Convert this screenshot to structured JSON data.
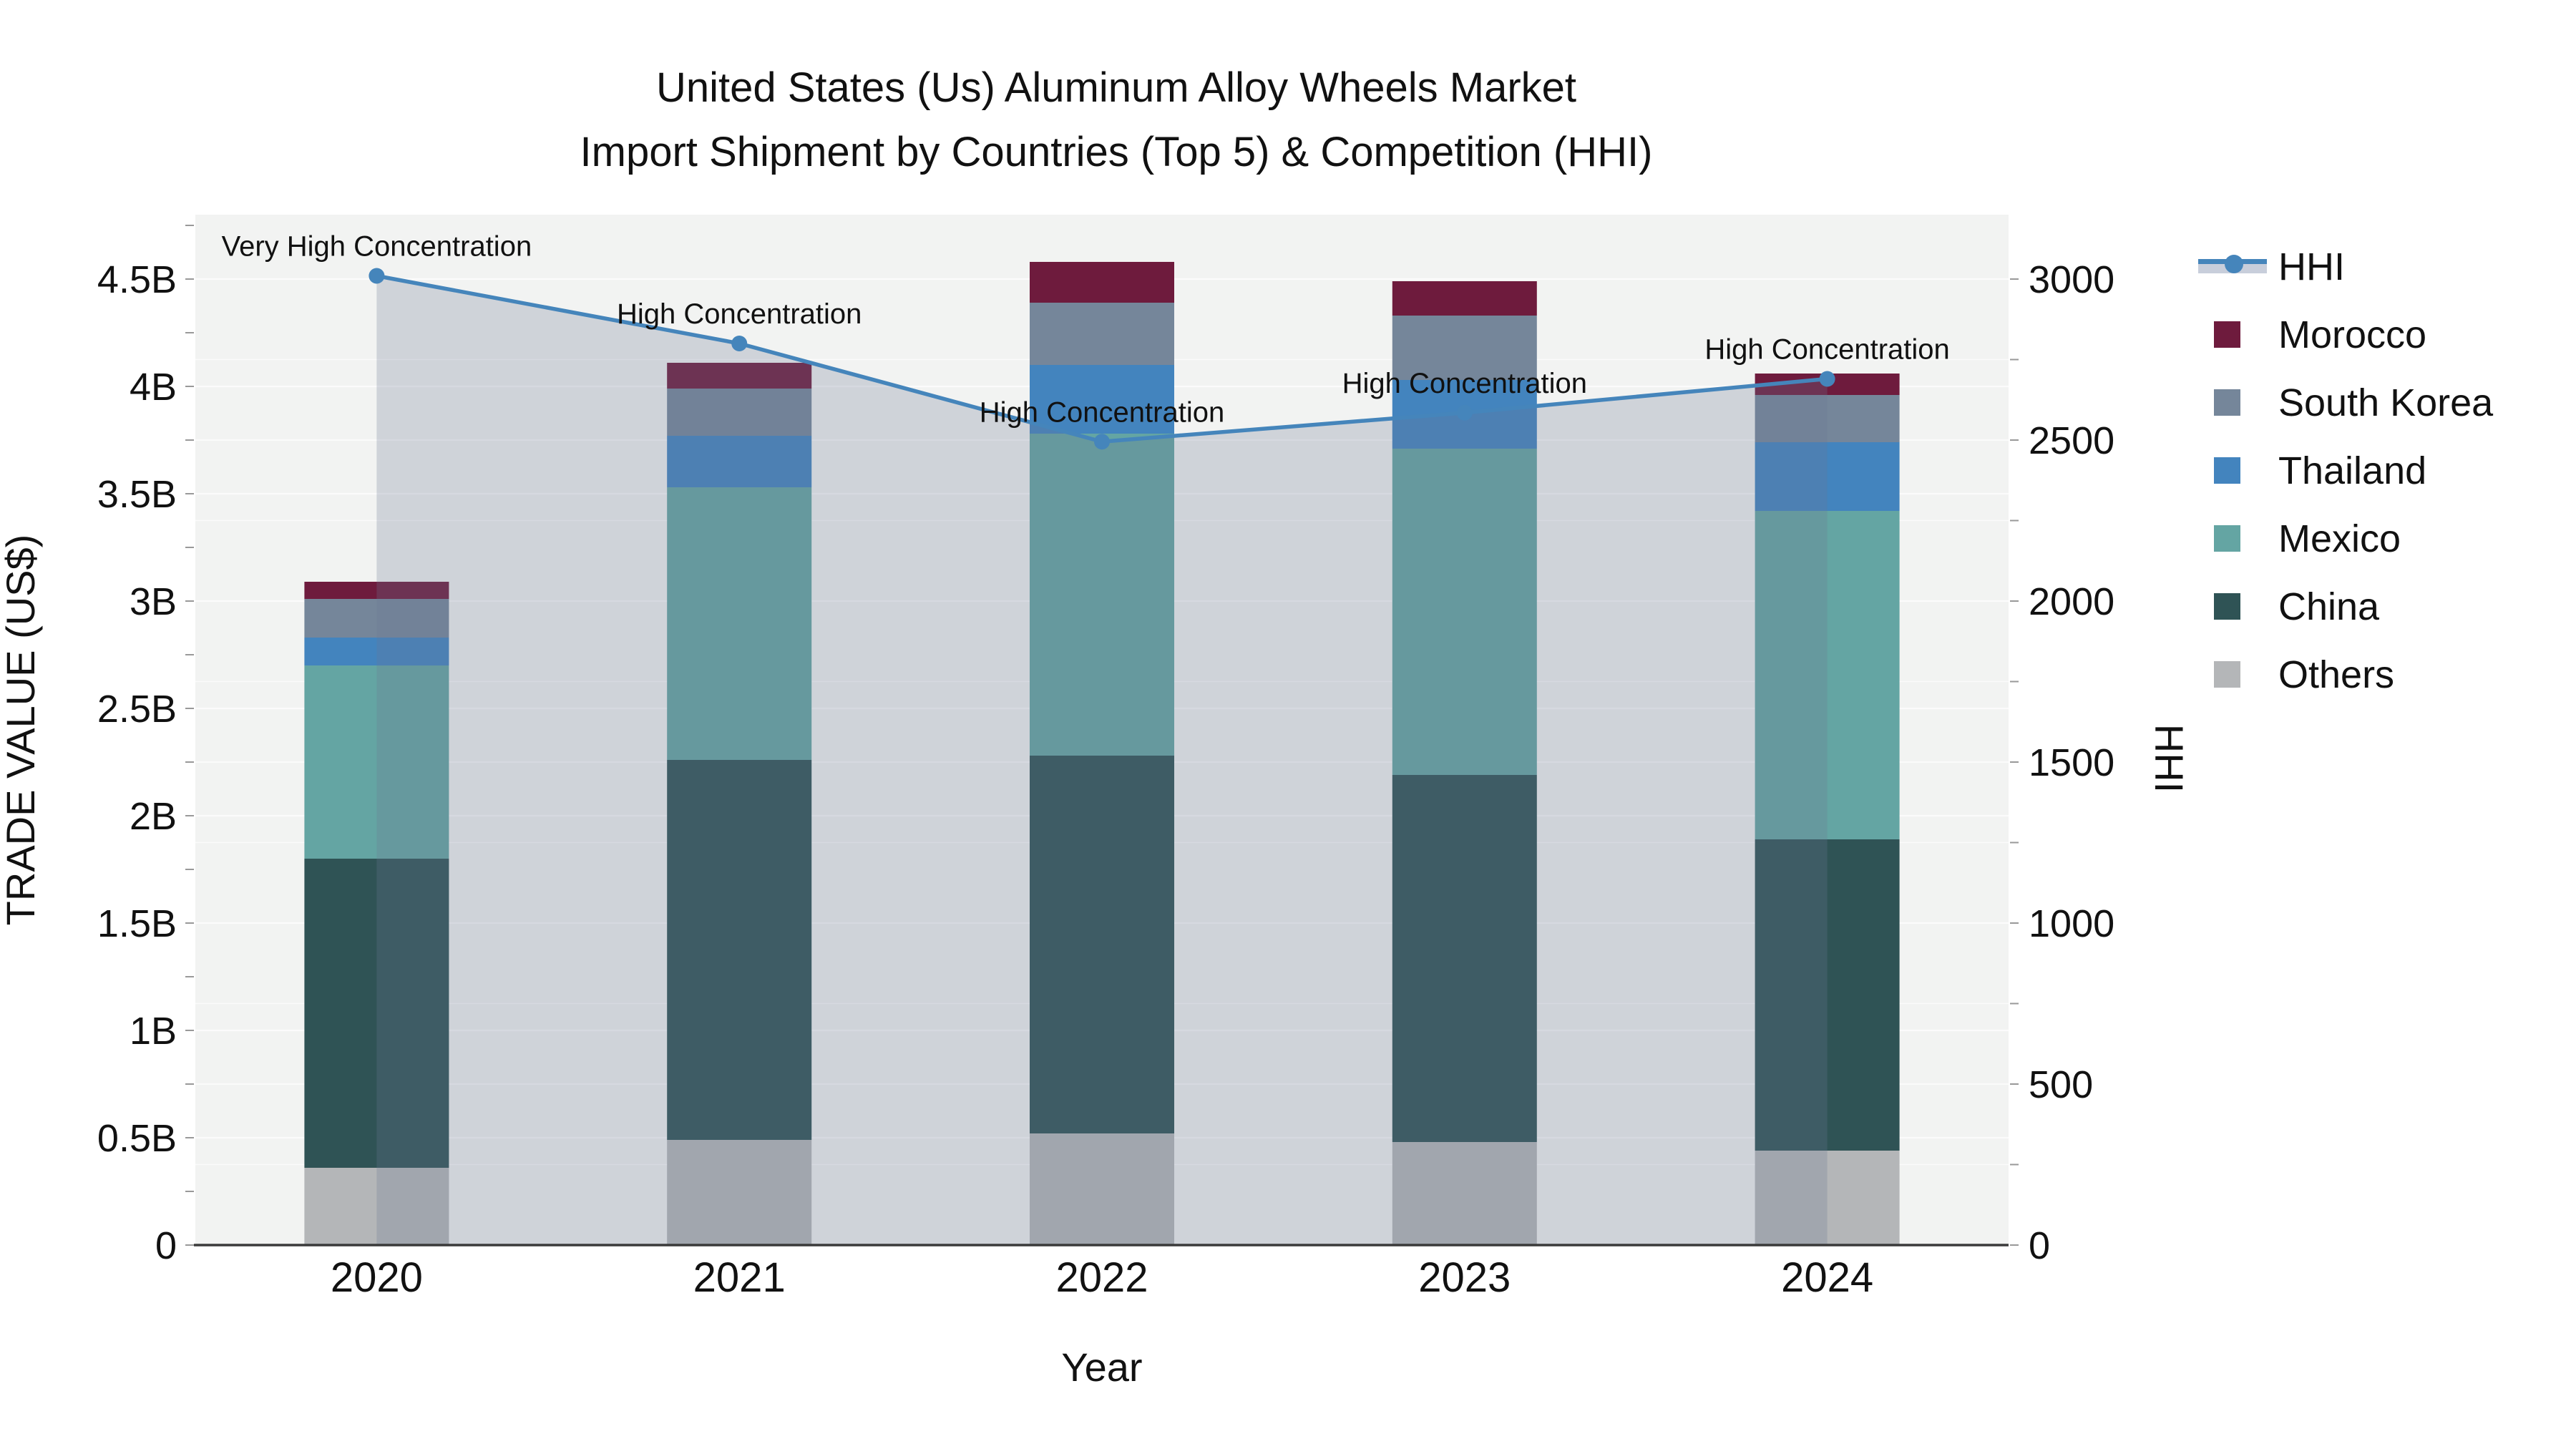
{
  "title": {
    "line1": "United States (Us) Aluminum Alloy Wheels Market",
    "line2": "Import Shipment by Countries (Top 5) & Competition (HHI)"
  },
  "axes": {
    "left": {
      "title": "TRADE VALUE (US$)",
      "ticks": [
        {
          "v": 0,
          "label": "0"
        },
        {
          "v": 0.5,
          "label": "0.5B"
        },
        {
          "v": 1,
          "label": "1B"
        },
        {
          "v": 1.5,
          "label": "1.5B"
        },
        {
          "v": 2,
          "label": "2B"
        },
        {
          "v": 2.5,
          "label": "2.5B"
        },
        {
          "v": 3,
          "label": "3B"
        },
        {
          "v": 3.5,
          "label": "3.5B"
        },
        {
          "v": 4,
          "label": "4B"
        },
        {
          "v": 4.5,
          "label": "4.5B"
        }
      ]
    },
    "right": {
      "title": "HHI",
      "ticks": [
        {
          "v": 0,
          "label": "0"
        },
        {
          "v": 500,
          "label": "500"
        },
        {
          "v": 1000,
          "label": "1000"
        },
        {
          "v": 1500,
          "label": "1500"
        },
        {
          "v": 2000,
          "label": "2000"
        },
        {
          "v": 2500,
          "label": "2500"
        },
        {
          "v": 3000,
          "label": "3000"
        }
      ]
    },
    "x": {
      "title": "Year"
    }
  },
  "colors": {
    "plot_bg": "#f2f3f2",
    "grid": "#fbfbfb",
    "axis_line": "#3a3a3a",
    "text": "#111111",
    "hhi_line": "#4585bb",
    "hhi_area": "rgba(108,120,148,0.26)",
    "legend_band": "#c8cedb"
  },
  "legend": {
    "items": [
      {
        "label": "HHI",
        "type": "line",
        "color": "#4585bb"
      },
      {
        "label": "Morocco",
        "type": "swatch",
        "color": "#6e1b3d"
      },
      {
        "label": "South Korea",
        "type": "swatch",
        "color": "#75869a"
      },
      {
        "label": "Thailand",
        "type": "swatch",
        "color": "#4384be"
      },
      {
        "label": "Mexico",
        "type": "swatch",
        "color": "#64a5a3"
      },
      {
        "label": "China",
        "type": "swatch",
        "color": "#2f5355"
      },
      {
        "label": "Others",
        "type": "swatch",
        "color": "#b4b6b8"
      }
    ]
  },
  "chart_data": {
    "type": "bar",
    "subtype": "stacked-bar-with-line-overlay",
    "categories": [
      "2020",
      "2021",
      "2022",
      "2023",
      "2024"
    ],
    "value_unit": "billion US$",
    "series": [
      {
        "name": "Others",
        "color": "#b4b6b8",
        "values": [
          0.36,
          0.49,
          0.52,
          0.48,
          0.44
        ]
      },
      {
        "name": "China",
        "color": "#2f5355",
        "values": [
          1.44,
          1.77,
          1.76,
          1.71,
          1.45
        ]
      },
      {
        "name": "Mexico",
        "color": "#64a5a3",
        "values": [
          0.9,
          1.27,
          1.5,
          1.52,
          1.53
        ]
      },
      {
        "name": "Thailand",
        "color": "#4384be",
        "values": [
          0.13,
          0.24,
          0.32,
          0.32,
          0.32
        ]
      },
      {
        "name": "South Korea",
        "color": "#75869a",
        "values": [
          0.18,
          0.22,
          0.29,
          0.3,
          0.22
        ]
      },
      {
        "name": "Morocco",
        "color": "#6e1b3d",
        "values": [
          0.08,
          0.12,
          0.19,
          0.16,
          0.1
        ]
      }
    ],
    "line": {
      "name": "HHI",
      "color": "#4585bb",
      "area_fill": "rgba(108,120,148,0.26)",
      "values": [
        3010,
        2800,
        2495,
        2585,
        2690
      ]
    },
    "annotations": [
      {
        "category": "2020",
        "text": "Very High Concentration"
      },
      {
        "category": "2021",
        "text": "High Concentration"
      },
      {
        "category": "2022",
        "text": "High Concentration"
      },
      {
        "category": "2023",
        "text": "High Concentration"
      },
      {
        "category": "2024",
        "text": "High Concentration"
      }
    ],
    "ylim_left": [
      0,
      4.8
    ],
    "ylim_right": [
      0,
      3200
    ],
    "grid": true,
    "legend_position": "right"
  }
}
